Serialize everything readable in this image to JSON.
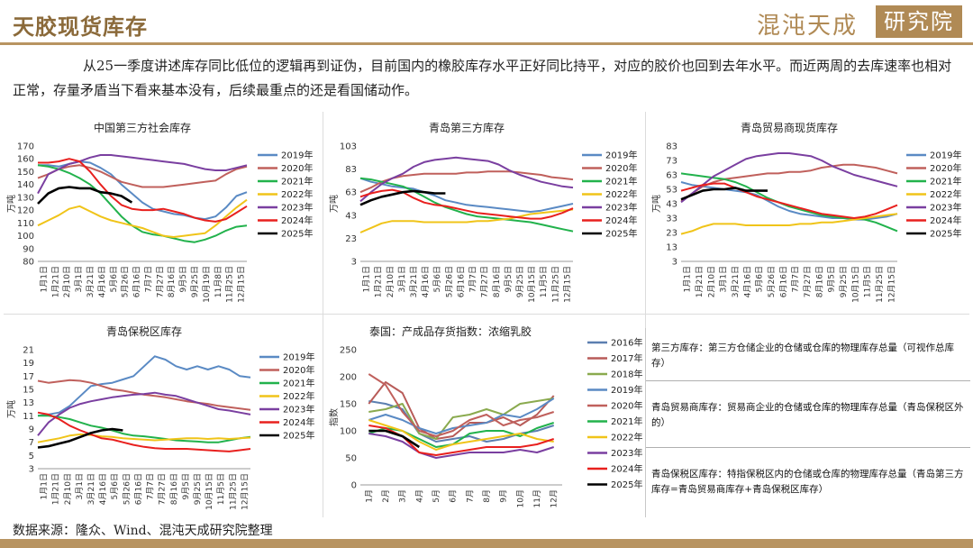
{
  "header": {
    "title": "天胶现货库存",
    "logo_main": "混沌天成",
    "logo_box": "研究院"
  },
  "intro": "从25一季度讲述库存同比低位的逻辑再到证伪，目前国内的橡胶库存水平正好同比持平，对应的胶价也回到去年水平。而近两周的去库速率也相对正常，存量矛盾当下看来基本没有，后续最重点的还是看国储动作。",
  "colors": {
    "2016年": "#5b7fb0",
    "2017年": "#b85b58",
    "2018年": "#8aaa4e",
    "2019年": "#5a8ac4",
    "2020年": "#c0605c",
    "2021年": "#22b24c",
    "2022年": "#f0c419",
    "2023年": "#7a3fa0",
    "2024年": "#e8201e",
    "2025年": "#000000"
  },
  "chart_data": [
    {
      "type": "line",
      "title": "中国第三方社会库存",
      "ylabel": "万吨",
      "ylim": [
        80,
        170
      ],
      "yticks": [
        80,
        90,
        100,
        110,
        120,
        130,
        140,
        150,
        160,
        170
      ],
      "xticks": [
        "1月1日",
        "1月21日",
        "2月10日",
        "3月1日",
        "3月21日",
        "4月16日",
        "5月6日",
        "5月26日",
        "6月16日",
        "7月7日",
        "7月27日",
        "8月16日",
        "9月5日",
        "9月25日",
        "10月19日",
        "11月8日",
        "11月25日",
        "12月15日"
      ],
      "xticks_alt": [
        "1月1日",
        "1月21日",
        "2月10日",
        "3月1日",
        "3月21日",
        "4月16日",
        "5月6日",
        "5月26日",
        "6月16日",
        "7月7日",
        "7月27日",
        "8月16日",
        "9月5日",
        "9月25日",
        "10月15日",
        "11月5日",
        "11月25日",
        "12月15日"
      ],
      "series": [
        {
          "name": "2019年",
          "values": [
            155,
            155,
            154,
            156,
            158,
            157,
            153,
            148,
            140,
            133,
            126,
            121,
            119,
            117,
            116,
            114,
            113,
            115,
            122,
            131,
            134
          ]
        },
        {
          "name": "2020年",
          "values": [
            145,
            148,
            152,
            154,
            155,
            153,
            150,
            146,
            142,
            140,
            138,
            138,
            138,
            139,
            140,
            141,
            142,
            143,
            148,
            152,
            154
          ]
        },
        {
          "name": "2021年",
          "values": [
            155,
            154,
            152,
            149,
            145,
            140,
            133,
            124,
            115,
            108,
            103,
            101,
            100,
            98,
            96,
            95,
            97,
            100,
            104,
            107,
            108
          ]
        },
        {
          "name": "2022年",
          "values": [
            108,
            112,
            116,
            121,
            123,
            119,
            115,
            112,
            110,
            108,
            106,
            103,
            100,
            99,
            100,
            101,
            102,
            108,
            115,
            122,
            128
          ]
        },
        {
          "name": "2023年",
          "values": [
            133,
            148,
            152,
            156,
            158,
            161,
            163,
            163,
            162,
            161,
            160,
            159,
            158,
            157,
            156,
            154,
            152,
            151,
            151,
            153,
            155
          ]
        },
        {
          "name": "2024年",
          "values": [
            157,
            157,
            158,
            160,
            158,
            150,
            140,
            131,
            124,
            121,
            120,
            120,
            121,
            119,
            117,
            114,
            112,
            111,
            113,
            118,
            123
          ]
        },
        {
          "name": "2025年",
          "values": [
            125,
            133,
            137,
            138,
            137,
            137,
            134,
            133,
            131,
            126
          ]
        }
      ]
    },
    {
      "type": "line",
      "title": "青岛第三方库存",
      "ylabel": "万吨",
      "ylim": [
        3,
        103
      ],
      "yticks": [
        3,
        23,
        43,
        63,
        83,
        103
      ],
      "xticks": [
        "1月1日",
        "1月21日",
        "2月10日",
        "3月1日",
        "3月21日",
        "4月16日",
        "5月6日",
        "5月26日",
        "6月16日",
        "7月7日",
        "7月27日",
        "8月16日",
        "9月5日",
        "9月25日",
        "10月15日",
        "11月5日",
        "11月25日",
        "12月15日"
      ],
      "series": [
        {
          "name": "2019年",
          "values": [
            75,
            72,
            70,
            68,
            67,
            66,
            63,
            60,
            56,
            54,
            52,
            51,
            50,
            49,
            48,
            47,
            46,
            47,
            49,
            51,
            53
          ]
        },
        {
          "name": "2020年",
          "values": [
            63,
            67,
            72,
            75,
            77,
            78,
            79,
            79,
            79,
            79,
            80,
            80,
            81,
            81,
            81,
            80,
            79,
            78,
            76,
            75,
            74
          ]
        },
        {
          "name": "2021年",
          "values": [
            75,
            74,
            72,
            70,
            68,
            64,
            59,
            54,
            50,
            47,
            44,
            42,
            41,
            40,
            39,
            38,
            37,
            35,
            33,
            31,
            29
          ]
        },
        {
          "name": "2022年",
          "values": [
            28,
            32,
            36,
            38,
            38,
            38,
            37,
            37,
            37,
            37,
            37,
            38,
            38,
            39,
            40,
            42,
            44,
            45,
            46,
            47,
            48
          ]
        },
        {
          "name": "2023年",
          "values": [
            55,
            63,
            70,
            75,
            79,
            85,
            89,
            91,
            92,
            93,
            92,
            91,
            90,
            87,
            82,
            78,
            75,
            72,
            70,
            68,
            67
          ]
        },
        {
          "name": "2024年",
          "values": [
            59,
            62,
            64,
            65,
            63,
            58,
            54,
            52,
            51,
            49,
            47,
            45,
            44,
            43,
            42,
            41,
            40,
            40,
            42,
            45,
            49
          ]
        },
        {
          "name": "2025年",
          "values": [
            52,
            56,
            59,
            61,
            63,
            64,
            63,
            62,
            62
          ]
        }
      ]
    },
    {
      "type": "line",
      "title": "青岛贸易商现货库存",
      "ylabel": "万吨",
      "ylim": [
        3,
        83
      ],
      "yticks": [
        3,
        13,
        23,
        33,
        43,
        53,
        63,
        73,
        83
      ],
      "xticks": [
        "1月1日",
        "1月21日",
        "2月10日",
        "3月1日",
        "3月21日",
        "4月16日",
        "5月6日",
        "5月26日",
        "6月16日",
        "7月7日",
        "7月27日",
        "8月16日",
        "9月5日",
        "9月25日",
        "10月15日",
        "11月5日",
        "11月25日",
        "12月15日"
      ],
      "series": [
        {
          "name": "2019年",
          "values": [
            58,
            56,
            55,
            54,
            53,
            52,
            51,
            49,
            45,
            41,
            38,
            36,
            35,
            34,
            33,
            33,
            32,
            32,
            33,
            34,
            36
          ]
        },
        {
          "name": "2020年",
          "values": [
            45,
            50,
            55,
            58,
            60,
            61,
            62,
            63,
            64,
            64,
            65,
            65,
            66,
            68,
            69,
            70,
            70,
            69,
            68,
            66,
            64
          ]
        },
        {
          "name": "2021年",
          "values": [
            64,
            63,
            62,
            61,
            60,
            58,
            55,
            51,
            47,
            44,
            41,
            39,
            37,
            35,
            34,
            33,
            33,
            32,
            30,
            27,
            24
          ]
        },
        {
          "name": "2022年",
          "values": [
            22,
            24,
            27,
            29,
            29,
            29,
            28,
            28,
            28,
            28,
            28,
            29,
            29,
            30,
            30,
            31,
            32,
            33,
            34,
            35,
            36
          ]
        },
        {
          "name": "2023年",
          "values": [
            44,
            50,
            56,
            62,
            66,
            70,
            74,
            76,
            77,
            78,
            78,
            77,
            76,
            73,
            69,
            66,
            63,
            61,
            59,
            57,
            55
          ]
        },
        {
          "name": "2024年",
          "values": [
            52,
            54,
            56,
            57,
            57,
            54,
            51,
            48,
            46,
            44,
            42,
            40,
            38,
            36,
            35,
            34,
            33,
            34,
            36,
            39,
            42
          ]
        },
        {
          "name": "2025年",
          "values": [
            46,
            49,
            52,
            53,
            53,
            54,
            52,
            52,
            52
          ]
        }
      ]
    },
    {
      "type": "line",
      "title": "青岛保税区库存",
      "ylabel": "万吨",
      "ylim": [
        3,
        21
      ],
      "yticks": [
        3,
        5,
        7,
        9,
        11,
        13,
        15,
        17,
        19,
        21
      ],
      "xticks": [
        "1月1日",
        "1月21日",
        "2月10日",
        "3月1日",
        "3月21日",
        "4月16日",
        "5月6日",
        "5月26日",
        "6月16日",
        "7月7日",
        "7月27日",
        "8月16日",
        "9月5日",
        "9月25日",
        "10月15日",
        "11月5日",
        "11月25日",
        "12月15日"
      ],
      "series": [
        {
          "name": "2019年",
          "values": [
            11,
            11.2,
            11.5,
            12.5,
            14,
            15.5,
            15.8,
            16,
            16.5,
            17,
            18.5,
            20,
            19.5,
            18.5,
            18,
            18.5,
            18,
            18.5,
            18,
            17,
            16.8
          ]
        },
        {
          "name": "2020年",
          "values": [
            16.3,
            16,
            16.2,
            16.4,
            16.3,
            16,
            15.5,
            15,
            14.8,
            14.5,
            14.2,
            14,
            13.8,
            13.5,
            13.2,
            13,
            12.8,
            12.5,
            12.3,
            12.1,
            11.9
          ]
        },
        {
          "name": "2021年",
          "values": [
            11,
            11,
            10.8,
            10.5,
            10,
            9.5,
            9.2,
            8.8,
            8.3,
            8,
            7.9,
            7.7,
            7.5,
            7.3,
            7.2,
            7.1,
            7,
            7,
            7.3,
            7.6,
            7.8
          ]
        },
        {
          "name": "2022年",
          "values": [
            7,
            7.3,
            7.6,
            8,
            8.2,
            8.1,
            7.9,
            7.8,
            7.6,
            7.5,
            7.4,
            7.3,
            7.4,
            7.5,
            7.6,
            7.6,
            7.5,
            7.6,
            7.5,
            7.6,
            7.7
          ]
        },
        {
          "name": "2023年",
          "values": [
            8,
            10,
            11.2,
            12.2,
            12.8,
            13.2,
            13.5,
            13.8,
            14,
            14.2,
            14.3,
            14.5,
            14.2,
            14,
            13.5,
            13,
            12.5,
            12,
            11.8,
            11.5,
            11.2
          ]
        },
        {
          "name": "2024年",
          "values": [
            11.5,
            11.2,
            10.5,
            9.5,
            8.8,
            8.2,
            7.6,
            7.4,
            7,
            6.6,
            6.3,
            6.1,
            6,
            6,
            6,
            5.9,
            5.8,
            5.7,
            5.6,
            5.8,
            6
          ]
        },
        {
          "name": "2025年",
          "values": [
            6.2,
            6.4,
            6.8,
            7.2,
            7.8,
            8.4,
            8.8,
            9,
            8.8
          ]
        }
      ]
    },
    {
      "type": "line",
      "title": "泰国：产成品存货指数：浓缩乳胶",
      "ylabel": "指数",
      "ylim": [
        0,
        250
      ],
      "yticks": [
        0,
        50,
        100,
        150,
        200,
        250
      ],
      "xticks": [
        "1月",
        "2月",
        "3月",
        "4月",
        "5月",
        "6月",
        "7月",
        "8月",
        "9月",
        "10月",
        "11月",
        "12月"
      ],
      "series": [
        {
          "name": "2016年",
          "values": [
            155,
            150,
            140,
            95,
            80,
            85,
            90,
            80,
            85,
            95,
            100,
            110
          ]
        },
        {
          "name": "2017年",
          "values": [
            150,
            190,
            170,
            105,
            85,
            90,
            115,
            115,
            125,
            110,
            130,
            165
          ]
        },
        {
          "name": "2018年",
          "values": [
            135,
            140,
            150,
            95,
            85,
            125,
            130,
            140,
            130,
            150,
            155,
            160
          ]
        },
        {
          "name": "2019年",
          "values": [
            120,
            130,
            120,
            105,
            95,
            105,
            110,
            115,
            130,
            125,
            140,
            160
          ]
        },
        {
          "name": "2020年",
          "values": [
            205,
            185,
            135,
            100,
            90,
            100,
            120,
            130,
            110,
            120,
            125,
            135
          ]
        },
        {
          "name": "2021年",
          "values": [
            95,
            105,
            100,
            85,
            70,
            75,
            95,
            100,
            100,
            90,
            105,
            115
          ]
        },
        {
          "name": "2022年",
          "values": [
            120,
            110,
            100,
            80,
            65,
            75,
            80,
            85,
            90,
            95,
            85,
            80
          ]
        },
        {
          "name": "2023年",
          "values": [
            95,
            90,
            80,
            60,
            50,
            55,
            60,
            60,
            60,
            65,
            60,
            70
          ]
        },
        {
          "name": "2024年",
          "values": [
            110,
            105,
            90,
            60,
            55,
            60,
            65,
            70,
            70,
            70,
            75,
            85
          ]
        },
        {
          "name": "2025年",
          "values": [
            100,
            100,
            90,
            70
          ]
        }
      ]
    }
  ],
  "notes": [
    "第三方库存：第三方仓储企业的仓储或仓库的物理库存总量（可视作总库存）",
    "青岛贸易商库存：贸易商企业的仓储或仓库的物理库存总量（青岛保税区外的）",
    "青岛保税区库存：特指保税区内的仓储或仓库的物理库存总量（青岛第三方库存=青岛贸易商库存+青岛保税区库存）"
  ],
  "source": "数据来源：隆众、Wind、混沌天成研究院整理"
}
